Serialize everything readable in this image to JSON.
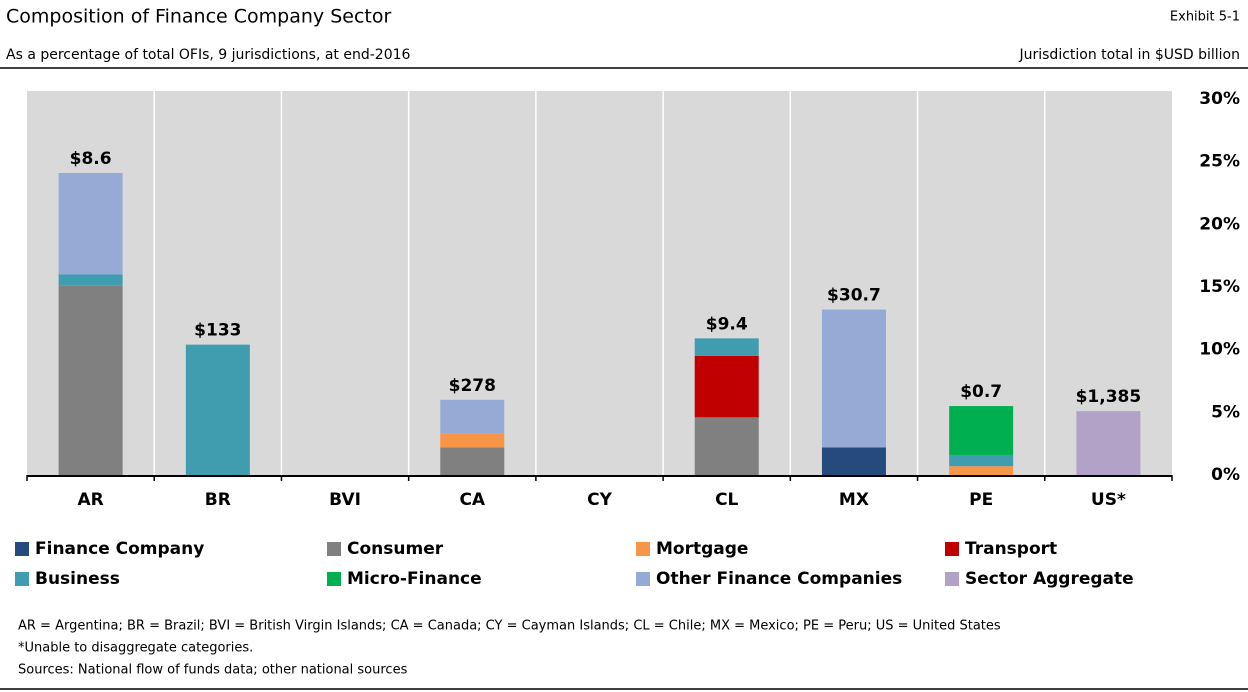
{
  "chart_data": {
    "type": "stacked_bar",
    "title": "Composition of Finance Company Sector",
    "exhibit": "Exhibit 5-1",
    "subtitle": "As a percentage of total OFIs, 9 jurisdictions, at end-2016",
    "units_note": "Jurisdiction total in $USD billion",
    "categories": [
      "AR",
      "BR",
      "BVI",
      "CA",
      "CY",
      "CL",
      "MX",
      "PE",
      "US*"
    ],
    "series": [
      {
        "name": "Finance Company",
        "color": "#254a7d",
        "values": [
          null,
          null,
          null,
          null,
          null,
          null,
          2.2,
          null,
          null
        ]
      },
      {
        "name": "Consumer",
        "color": "#808080",
        "values": [
          15.1,
          null,
          null,
          2.2,
          null,
          4.6,
          null,
          null,
          null
        ]
      },
      {
        "name": "Mortgage",
        "color": "#f79646",
        "values": [
          null,
          null,
          null,
          1.1,
          null,
          null,
          null,
          0.7,
          null
        ]
      },
      {
        "name": "Transport",
        "color": "#c00000",
        "values": [
          null,
          null,
          null,
          null,
          null,
          4.9,
          null,
          null,
          null
        ]
      },
      {
        "name": "Business",
        "color": "#409caf",
        "values": [
          0.9,
          10.4,
          null,
          null,
          null,
          1.4,
          null,
          0.9,
          null
        ]
      },
      {
        "name": "Micro-Finance",
        "color": "#00b050",
        "values": [
          null,
          null,
          null,
          null,
          null,
          null,
          null,
          3.9,
          null
        ]
      },
      {
        "name": "Other Finance Companies",
        "color": "#95abd5",
        "values": [
          8.1,
          null,
          null,
          2.7,
          null,
          null,
          11.0,
          null,
          null
        ]
      },
      {
        "name": "Sector Aggregate",
        "color": "#b3a2c7",
        "values": [
          null,
          null,
          null,
          null,
          null,
          null,
          null,
          null,
          5.1
        ]
      }
    ],
    "totals": {
      "values": [
        8.6,
        133,
        null,
        278,
        null,
        9.4,
        30.7,
        0.7,
        1385
      ],
      "value_labels": [
        "$8.6",
        "$133",
        null,
        "$278",
        null,
        "$9.4",
        "$30.7",
        "$0.7",
        "$1,385"
      ]
    },
    "ylim": [
      0,
      30
    ],
    "yticks": [
      {
        "value": 0,
        "label": "0%"
      },
      {
        "value": 5,
        "label": "5%"
      },
      {
        "value": 10,
        "label": "10%"
      },
      {
        "value": 15,
        "label": "15%"
      },
      {
        "value": 20,
        "label": "20%"
      },
      {
        "value": 25,
        "label": "25%"
      },
      {
        "value": 30,
        "label": "30%"
      }
    ],
    "notes": [
      "AR = Argentina; BR = Brazil; BVI = British Virgin Islands; CA = Canada; CY = Cayman Islands; CL = Chile; MX = Mexico; PE = Peru; US = United States",
      "*Unable to disaggregate categories.",
      "Sources: National flow of funds data; other national sources"
    ]
  }
}
